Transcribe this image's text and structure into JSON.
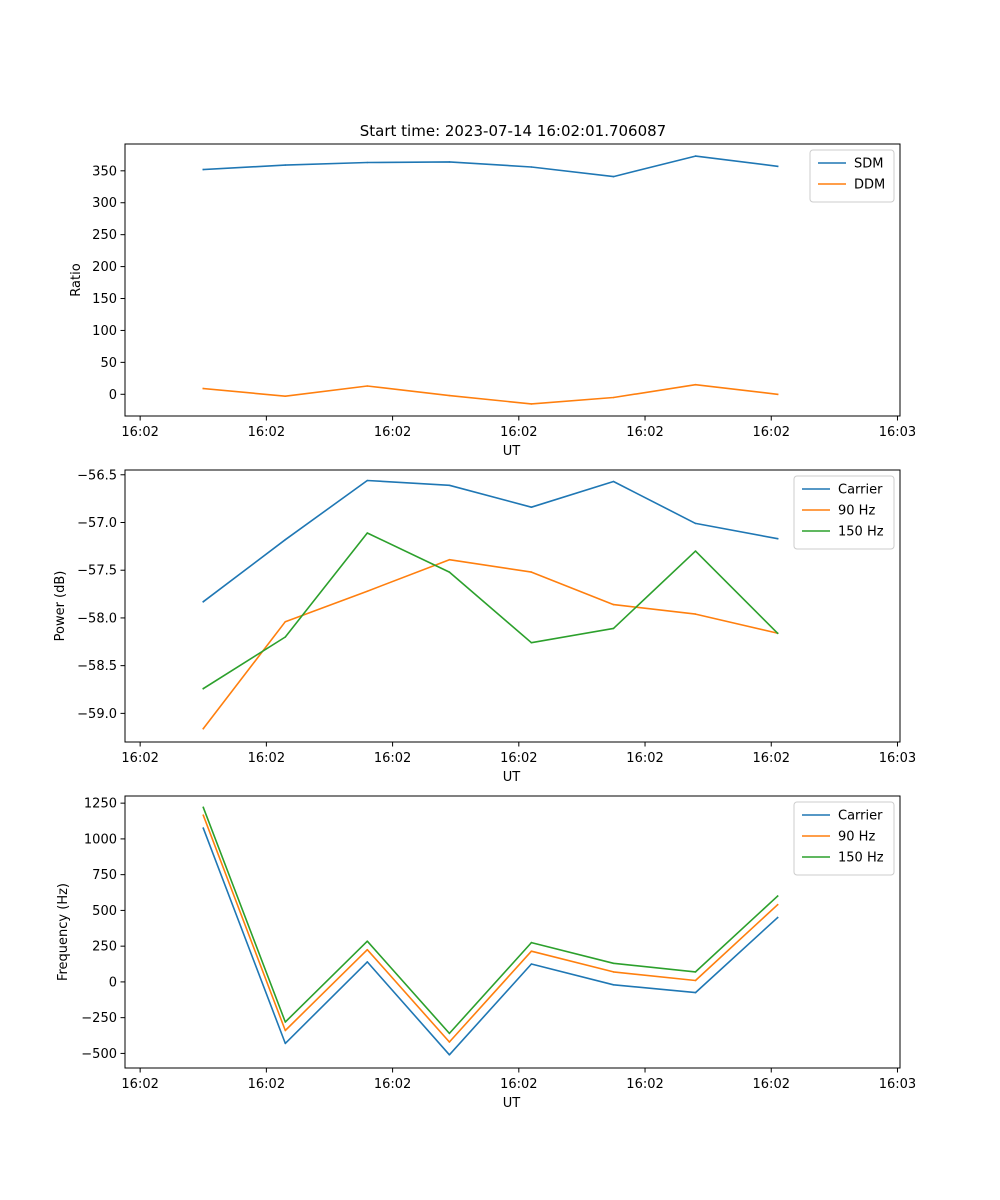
{
  "chart_data": [
    {
      "type": "line",
      "title": "Start time: 2023-07-14 16:02:01.706087",
      "xlabel": "UT",
      "ylabel": "Ratio",
      "xticks": [
        "16:02",
        "16:02",
        "16:02",
        "16:02",
        "16:02",
        "16:02",
        "16:03"
      ],
      "xtick_values": [
        0,
        1,
        2,
        3,
        4,
        5,
        6
      ],
      "xlim": [
        -0.12,
        6.02
      ],
      "x": [
        0.5,
        1.15,
        1.8,
        2.45,
        3.1,
        3.75,
        4.4,
        5.05
      ],
      "yticks": [
        0,
        50,
        100,
        150,
        200,
        250,
        300,
        350
      ],
      "ylim": [
        -34,
        392
      ],
      "grid": false,
      "legend": "top-right",
      "series": [
        {
          "name": "SDM",
          "color": "#1f77b4",
          "values": [
            352,
            359,
            363,
            364,
            356,
            341,
            373,
            357
          ]
        },
        {
          "name": "DDM",
          "color": "#ff7f0e",
          "values": [
            9,
            -3,
            13,
            -2,
            -15,
            -5,
            15,
            0
          ]
        }
      ]
    },
    {
      "type": "line",
      "title": "",
      "xlabel": "UT",
      "ylabel": "Power (dB)",
      "xticks": [
        "16:02",
        "16:02",
        "16:02",
        "16:02",
        "16:02",
        "16:02",
        "16:03"
      ],
      "xtick_values": [
        0,
        1,
        2,
        3,
        4,
        5,
        6
      ],
      "xlim": [
        -0.12,
        6.02
      ],
      "x": [
        0.5,
        1.15,
        1.8,
        2.45,
        3.1,
        3.75,
        4.4,
        5.05
      ],
      "yticks": [
        -59.0,
        -58.5,
        -58.0,
        -57.5,
        -57.0,
        -56.5
      ],
      "ytick_labels": [
        "−59.0",
        "−58.5",
        "−58.0",
        "−57.5",
        "−57.0",
        "−56.5"
      ],
      "ylim": [
        -59.3,
        -56.45
      ],
      "grid": false,
      "legend": "top-right",
      "series": [
        {
          "name": "Carrier",
          "color": "#1f77b4",
          "values": [
            -57.83,
            -57.18,
            -56.56,
            -56.61,
            -56.84,
            -56.57,
            -57.01,
            -57.17
          ]
        },
        {
          "name": "90 Hz",
          "color": "#ff7f0e",
          "values": [
            -59.16,
            -58.04,
            -57.72,
            -57.39,
            -57.52,
            -57.86,
            -57.96,
            -58.16
          ]
        },
        {
          "name": "150 Hz",
          "color": "#2ca02c",
          "values": [
            -58.74,
            -58.2,
            -57.11,
            -57.52,
            -58.26,
            -58.11,
            -57.3,
            -58.16
          ]
        }
      ]
    },
    {
      "type": "line",
      "title": "",
      "xlabel": "UT",
      "ylabel": "Frequency (Hz)",
      "xticks": [
        "16:02",
        "16:02",
        "16:02",
        "16:02",
        "16:02",
        "16:02",
        "16:03"
      ],
      "xtick_values": [
        0,
        1,
        2,
        3,
        4,
        5,
        6
      ],
      "xlim": [
        -0.12,
        6.02
      ],
      "x": [
        0.5,
        1.15,
        1.8,
        2.45,
        3.1,
        3.75,
        4.4,
        5.05
      ],
      "yticks": [
        -500,
        -250,
        0,
        250,
        500,
        750,
        1000,
        1250
      ],
      "ytick_labels": [
        "−500",
        "−250",
        "0",
        "250",
        "500",
        "750",
        "1000",
        "1250"
      ],
      "ylim": [
        -602,
        1300
      ],
      "grid": false,
      "legend": "top-right",
      "series": [
        {
          "name": "Carrier",
          "color": "#1f77b4",
          "values": [
            1075,
            -430,
            140,
            -510,
            125,
            -20,
            -75,
            450
          ]
        },
        {
          "name": "90 Hz",
          "color": "#ff7f0e",
          "values": [
            1165,
            -340,
            225,
            -420,
            215,
            70,
            10,
            540
          ]
        },
        {
          "name": "150 Hz",
          "color": "#2ca02c",
          "values": [
            1220,
            -280,
            285,
            -360,
            275,
            130,
            70,
            600
          ]
        }
      ]
    }
  ]
}
